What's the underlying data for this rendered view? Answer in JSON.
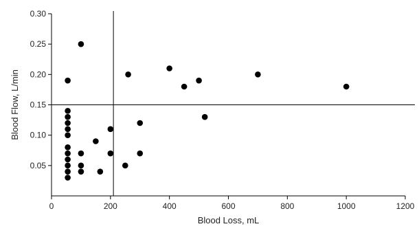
{
  "chart_data": {
    "type": "scatter",
    "xlabel": "Blood Loss, mL",
    "ylabel": "Blood Flow, L/min",
    "xlim": [
      0,
      1200
    ],
    "ylim": [
      0,
      0.3
    ],
    "x_ticks": [
      0,
      200,
      400,
      600,
      800,
      1000,
      1200
    ],
    "x_tick_labels": [
      "0",
      "200",
      "400",
      "600",
      "800",
      "1000",
      "1200"
    ],
    "y_ticks": [
      0.05,
      0.1,
      0.15,
      0.2,
      0.25,
      0.3
    ],
    "y_tick_labels": [
      "0.05",
      "0.10",
      "0.15",
      "0.20",
      "0.25",
      "0.30"
    ],
    "grid": false,
    "reference_lines": {
      "x": 210,
      "y": 0.15
    },
    "marker_color": "#000000",
    "series": [
      {
        "points": [
          [
            55,
            0.19
          ],
          [
            55,
            0.14
          ],
          [
            55,
            0.13
          ],
          [
            55,
            0.12
          ],
          [
            55,
            0.11
          ],
          [
            55,
            0.1
          ],
          [
            55,
            0.08
          ],
          [
            55,
            0.07
          ],
          [
            55,
            0.06
          ],
          [
            55,
            0.05
          ],
          [
            55,
            0.04
          ],
          [
            55,
            0.03
          ],
          [
            100,
            0.25
          ],
          [
            100,
            0.07
          ],
          [
            100,
            0.05
          ],
          [
            100,
            0.04
          ],
          [
            150,
            0.09
          ],
          [
            165,
            0.04
          ],
          [
            200,
            0.11
          ],
          [
            200,
            0.07
          ],
          [
            250,
            0.05
          ],
          [
            260,
            0.2
          ],
          [
            300,
            0.12
          ],
          [
            300,
            0.07
          ],
          [
            400,
            0.21
          ],
          [
            450,
            0.18
          ],
          [
            500,
            0.19
          ],
          [
            520,
            0.13
          ],
          [
            700,
            0.2
          ],
          [
            1000,
            0.18
          ]
        ]
      }
    ]
  }
}
